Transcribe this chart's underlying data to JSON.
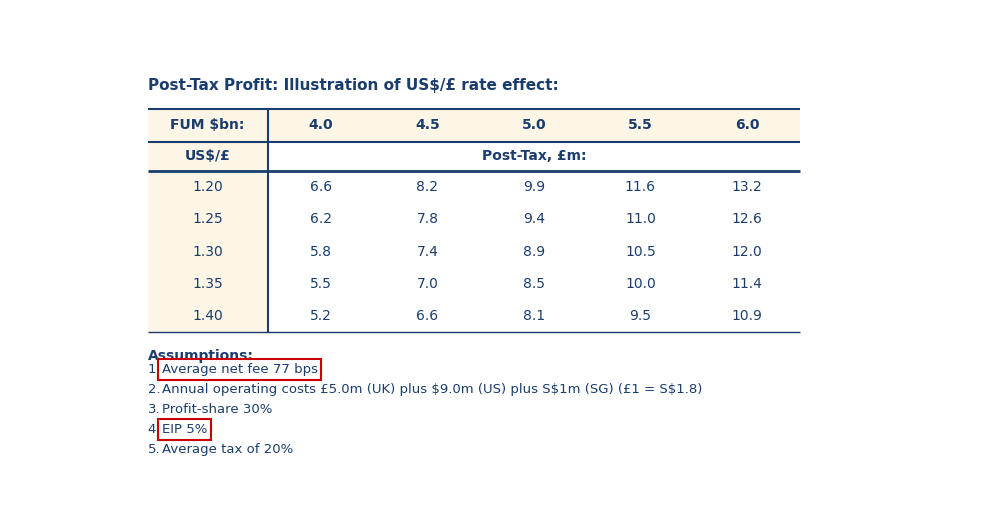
{
  "title": "Post-Tax Profit: Illustration of US$/£ rate effect:",
  "fum_header": "FUM $bn:",
  "rate_header": "US$/£",
  "post_tax_header": "Post-Tax, £m:",
  "fum_values": [
    "4.0",
    "4.5",
    "5.0",
    "5.5",
    "6.0"
  ],
  "exchange_rates": [
    "1.20",
    "1.25",
    "1.30",
    "1.35",
    "1.40"
  ],
  "table_data": [
    [
      "6.6",
      "8.2",
      "9.9",
      "11.6",
      "13.2"
    ],
    [
      "6.2",
      "7.8",
      "9.4",
      "11.0",
      "12.6"
    ],
    [
      "5.8",
      "7.4",
      "8.9",
      "10.5",
      "12.0"
    ],
    [
      "5.5",
      "7.0",
      "8.5",
      "10.0",
      "11.4"
    ],
    [
      "5.2",
      "6.6",
      "8.1",
      "9.5",
      "10.9"
    ]
  ],
  "assumptions_title": "Assumptions:",
  "assumptions_lines": [
    {
      "number": "1",
      "text": "Average net fee 77 bps",
      "boxed": true
    },
    {
      "number": "2.",
      "text": "Annual operating costs £5.0m (UK) plus $9.0m (US) plus S$1m (SG) (£1 = S$1.8)",
      "boxed": false
    },
    {
      "number": "3.",
      "text": "Profit-share 30%",
      "boxed": false
    },
    {
      "number": "4",
      "text": "EIP 5%",
      "boxed": true
    },
    {
      "number": "5.",
      "text": "Average tax of 20%",
      "boxed": false
    }
  ],
  "dark_blue": "#1a3d6e",
  "bg_cream": "#fdf5e6",
  "bg_white": "#ffffff",
  "red_box_color": "#cc0000",
  "font_size_title": 11,
  "font_size_header": 10,
  "font_size_data": 10,
  "font_size_assumptions_title": 10,
  "font_size_assumptions": 9.5
}
